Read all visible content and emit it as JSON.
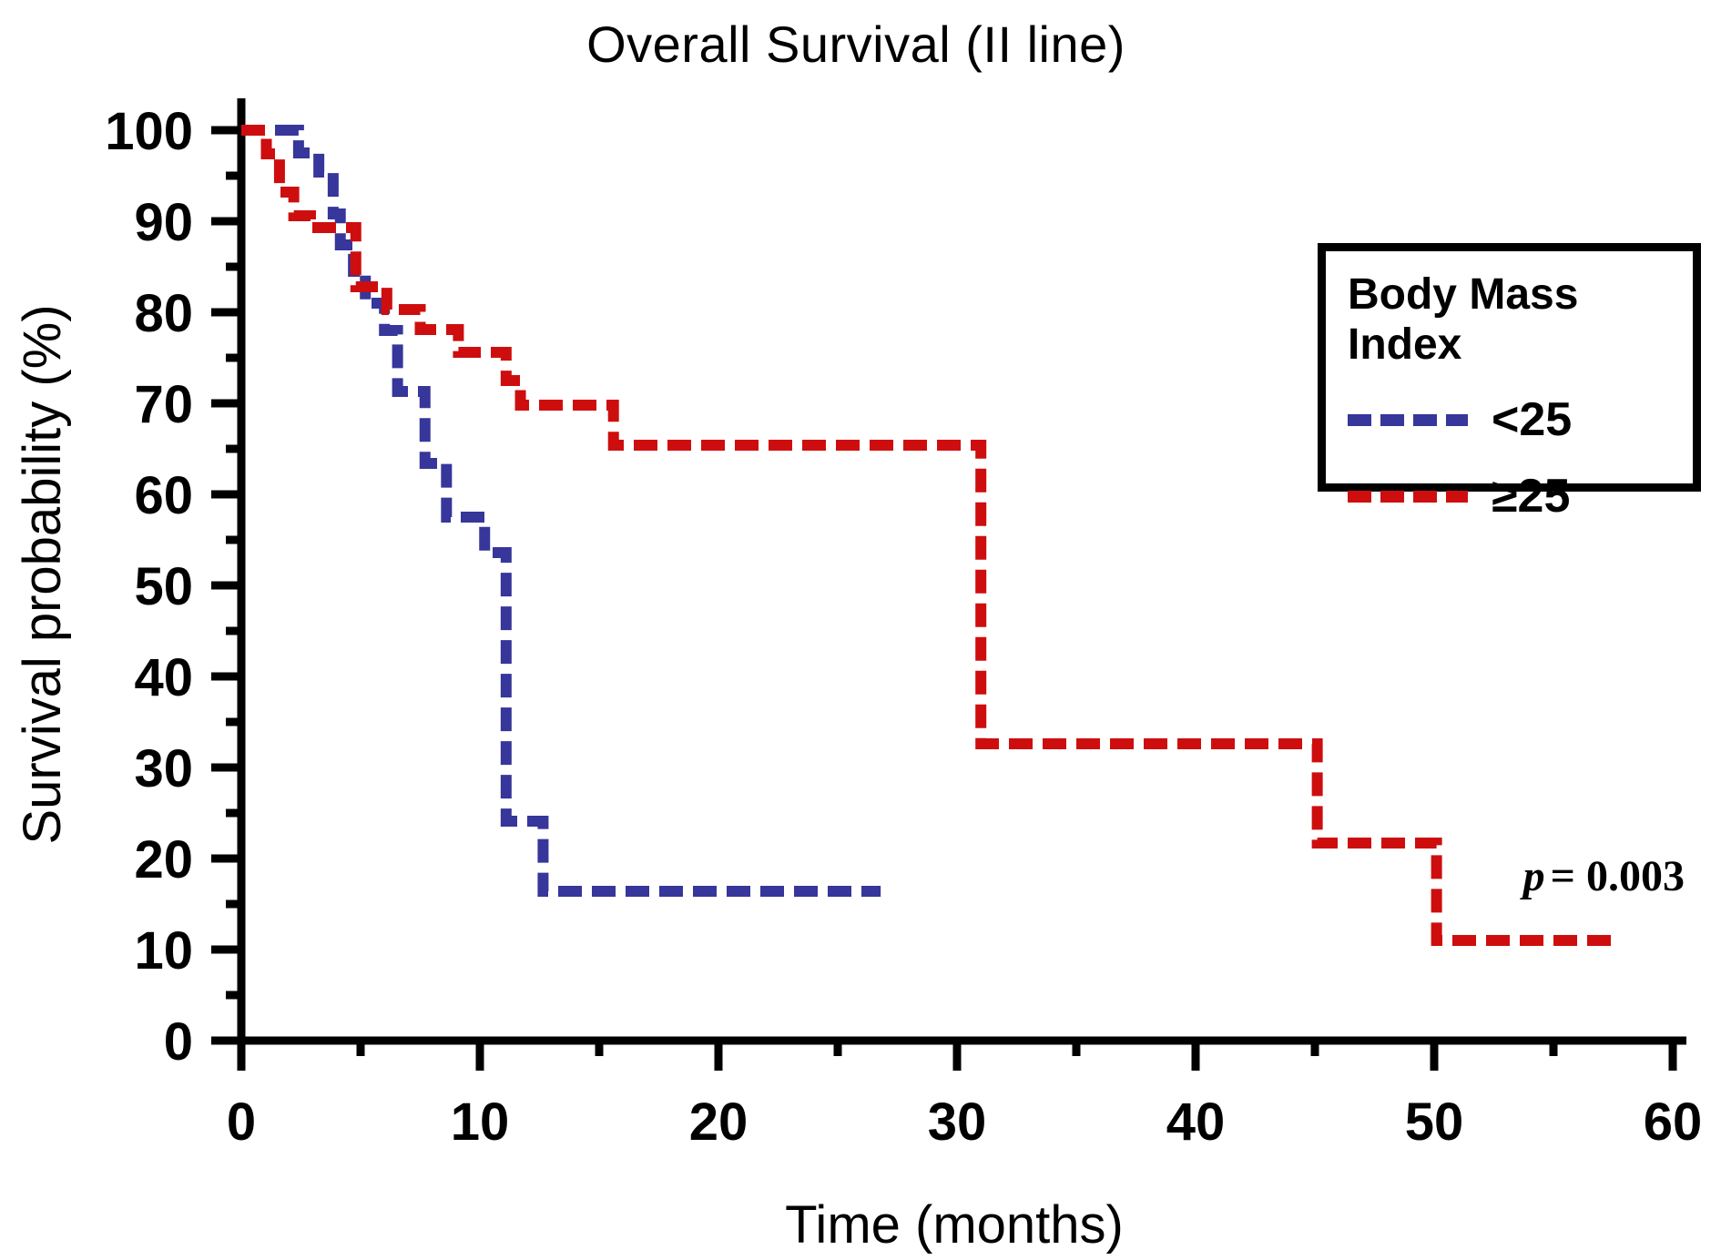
{
  "chart_data": {
    "type": "line",
    "subtype": "kaplan-meier-step",
    "title": "Overall Survival (II line)",
    "xlabel": "Time (months)",
    "ylabel": "Survival probability (%)",
    "xlim": [
      0,
      60
    ],
    "ylim": [
      0,
      100
    ],
    "xticks": [
      0,
      10,
      20,
      30,
      40,
      50,
      60
    ],
    "yticks": [
      0,
      10,
      20,
      30,
      40,
      50,
      60,
      70,
      80,
      90,
      100
    ],
    "minor_ticks": "midway between majors",
    "grid": "off",
    "axis_color": "#000000",
    "line_style": "dashed",
    "annotation": {
      "var": "p",
      "rest": "= 0.003"
    },
    "legend": {
      "title": "Body Mass Index",
      "position": "upper right",
      "entries": [
        {
          "label": "<25",
          "color": "#36369B"
        },
        {
          "label": "≥25",
          "color": "#CE0E0E"
        }
      ]
    },
    "series": [
      {
        "name": "BMI <25",
        "color": "#36369B",
        "end_time": 26.8,
        "points": [
          [
            0,
            100
          ],
          [
            2.4,
            97.5
          ],
          [
            3.25,
            95.4
          ],
          [
            3.85,
            90.8
          ],
          [
            4.15,
            87.4
          ],
          [
            4.7,
            84.5
          ],
          [
            5.2,
            81.0
          ],
          [
            6.0,
            78.0
          ],
          [
            6.55,
            71.3
          ],
          [
            7.7,
            63.4
          ],
          [
            8.6,
            57.5
          ],
          [
            10.2,
            53.6
          ],
          [
            11.1,
            24.1
          ],
          [
            12.65,
            16.4
          ]
        ]
      },
      {
        "name": "BMI ≥25",
        "color": "#CE0E0E",
        "end_time": 57.7,
        "points": [
          [
            0,
            100
          ],
          [
            1.05,
            97.4
          ],
          [
            1.6,
            93.2
          ],
          [
            2.2,
            90.6
          ],
          [
            2.9,
            89.3
          ],
          [
            4.8,
            82.8
          ],
          [
            6.1,
            80.3
          ],
          [
            7.5,
            78.1
          ],
          [
            9.1,
            75.6
          ],
          [
            11.1,
            72.5
          ],
          [
            11.7,
            69.8
          ],
          [
            15.6,
            65.4
          ],
          [
            31.0,
            32.6
          ],
          [
            45.1,
            21.7
          ],
          [
            50.1,
            11.0
          ]
        ]
      }
    ]
  }
}
